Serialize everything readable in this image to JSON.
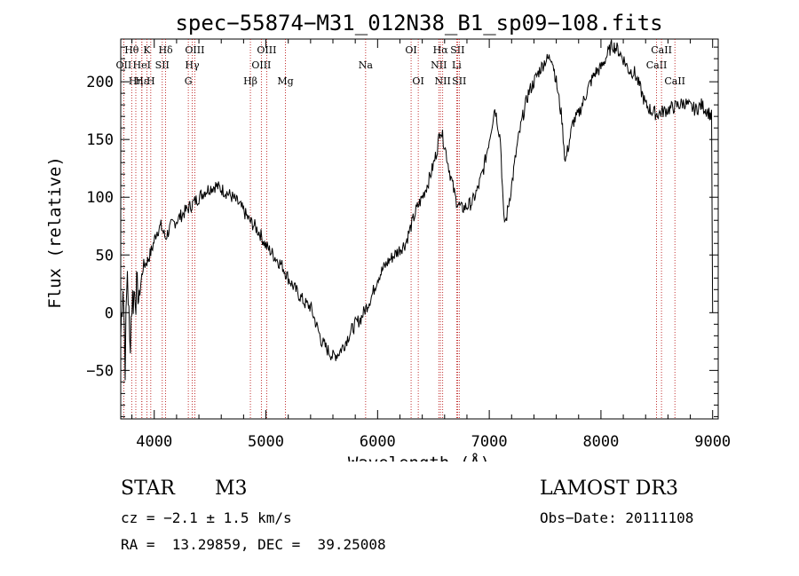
{
  "chart_data": {
    "type": "line",
    "title": "spec−55874−M31_012N38_B1_sp09−108.fits",
    "xlabel": "Wavelength (Å)",
    "ylabel": "Flux (relative)",
    "xlim": [
      3700,
      9050
    ],
    "ylim": [
      -92,
      237
    ],
    "xticks": [
      4000,
      5000,
      6000,
      7000,
      8000,
      9000
    ],
    "xtick_labels": [
      "4000",
      "5000",
      "6000",
      "7000",
      "8000",
      "9000"
    ],
    "yticks": [
      -50,
      0,
      50,
      100,
      150,
      200
    ],
    "ytick_labels": [
      "−50",
      "0",
      "50",
      "100",
      "150",
      "200"
    ],
    "grid": false,
    "series": [
      {
        "name": "spectrum",
        "x": [
          3700,
          3720,
          3740,
          3760,
          3780,
          3800,
          3830,
          3860,
          3900,
          3940,
          3980,
          4020,
          4060,
          4100,
          4150,
          4200,
          4250,
          4300,
          4350,
          4400,
          4450,
          4500,
          4550,
          4600,
          4650,
          4700,
          4750,
          4800,
          4850,
          4900,
          4950,
          5000,
          5050,
          5100,
          5150,
          5200,
          5250,
          5300,
          5350,
          5400,
          5450,
          5500,
          5550,
          5600,
          5650,
          5700,
          5750,
          5800,
          5850,
          5900,
          5950,
          6000,
          6050,
          6100,
          6150,
          6200,
          6250,
          6300,
          6350,
          6400,
          6450,
          6500,
          6530,
          6563,
          6600,
          6650,
          6700,
          6750,
          6800,
          6850,
          6900,
          6950,
          7000,
          7050,
          7100,
          7130,
          7150,
          7200,
          7250,
          7300,
          7350,
          7400,
          7450,
          7500,
          7560,
          7600,
          7650,
          7680,
          7700,
          7750,
          7800,
          7850,
          7900,
          7950,
          8000,
          8050,
          8100,
          8150,
          8200,
          8250,
          8300,
          8350,
          8400,
          8450,
          8500,
          8550,
          8600,
          8650,
          8700,
          8750,
          8800,
          8850,
          8900,
          8950,
          8990,
          9000
        ],
        "y": [
          -20,
          30,
          -40,
          40,
          -30,
          10,
          20,
          10,
          40,
          45,
          55,
          70,
          75,
          65,
          75,
          80,
          85,
          90,
          95,
          100,
          105,
          108,
          110,
          107,
          104,
          100,
          95,
          88,
          80,
          75,
          68,
          58,
          52,
          46,
          40,
          30,
          22,
          15,
          8,
          5,
          -10,
          -25,
          -32,
          -38,
          -35,
          -28,
          -18,
          -10,
          -5,
          5,
          15,
          30,
          38,
          45,
          50,
          55,
          60,
          75,
          90,
          100,
          112,
          128,
          140,
          160,
          145,
          120,
          98,
          90,
          92,
          96,
          108,
          125,
          150,
          178,
          150,
          80,
          80,
          110,
          145,
          170,
          190,
          200,
          210,
          218,
          222,
          200,
          168,
          130,
          140,
          165,
          172,
          185,
          198,
          208,
          212,
          222,
          232,
          228,
          220,
          210,
          208,
          195,
          180,
          175,
          172,
          174,
          176,
          178,
          180,
          182,
          178,
          176,
          180,
          175,
          170,
          0
        ],
        "color": "#000000"
      }
    ],
    "line_markers": [
      {
        "label": "Hθ",
        "wavelength": 3798,
        "row": 1
      },
      {
        "label": "OII",
        "wavelength": 3727,
        "row": 2
      },
      {
        "label": "Hη",
        "wavelength": 3835,
        "row": 3
      },
      {
        "label": "Hε",
        "wavelength": 3889,
        "row": 3
      },
      {
        "label": "HeI",
        "wavelength": 3889,
        "row": 2
      },
      {
        "label": "K",
        "wavelength": 3934,
        "row": 1
      },
      {
        "label": "H",
        "wavelength": 3969,
        "row": 3
      },
      {
        "label": "SII",
        "wavelength": 4072,
        "row": 2
      },
      {
        "label": "Hδ",
        "wavelength": 4102,
        "row": 1
      },
      {
        "label": "G",
        "wavelength": 4305,
        "row": 3
      },
      {
        "label": "Hγ",
        "wavelength": 4340,
        "row": 2
      },
      {
        "label": "OIII",
        "wavelength": 4363,
        "row": 1
      },
      {
        "label": "Hβ",
        "wavelength": 4861,
        "row": 3
      },
      {
        "label": "OIII",
        "wavelength": 4959,
        "row": 2
      },
      {
        "label": "OIII",
        "wavelength": 5007,
        "row": 1
      },
      {
        "label": "Mg",
        "wavelength": 5175,
        "row": 3
      },
      {
        "label": "Na",
        "wavelength": 5893,
        "row": 2
      },
      {
        "label": "OI",
        "wavelength": 6300,
        "row": 1
      },
      {
        "label": "OI",
        "wavelength": 6364,
        "row": 3
      },
      {
        "label": "NII",
        "wavelength": 6548,
        "row": 2
      },
      {
        "label": "Hα",
        "wavelength": 6563,
        "row": 1
      },
      {
        "label": "NII",
        "wavelength": 6583,
        "row": 3
      },
      {
        "label": "Li",
        "wavelength": 6708,
        "row": 2
      },
      {
        "label": "SII",
        "wavelength": 6716,
        "row": 1
      },
      {
        "label": "SII",
        "wavelength": 6731,
        "row": 3
      },
      {
        "label": "CaII",
        "wavelength": 8498,
        "row": 2
      },
      {
        "label": "CaII",
        "wavelength": 8542,
        "row": 1
      },
      {
        "label": "CaII",
        "wavelength": 8662,
        "row": 3
      }
    ]
  },
  "info": {
    "class": "STAR",
    "subclass": "M3",
    "survey": "LAMOST DR3",
    "cz": "cz = −2.1 ± 1.5 km/s",
    "obs_date": "Obs−Date: 20111108",
    "radec": "RA =  13.29859, DEC =  39.25008"
  }
}
